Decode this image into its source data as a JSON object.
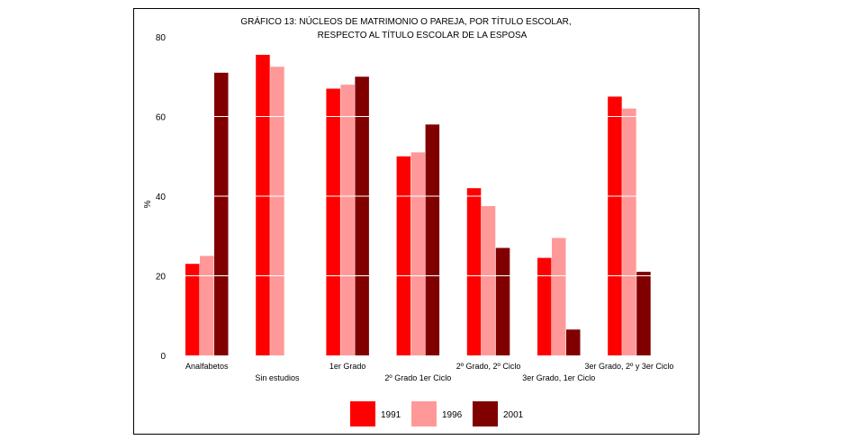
{
  "chart_data": {
    "type": "bar",
    "title": "GRÁFICO 13: NÚCLEOS DE MATRIMONIO O PAREJA, POR TÍTULO ESCOLAR,",
    "subtitle": "RESPECTO AL TÍTULO ESCOLAR DE LA ESPOSA",
    "xlabel": "",
    "ylabel": "%",
    "ylim": [
      0,
      80
    ],
    "yticks": [
      "0",
      "20",
      "40",
      "60",
      "80"
    ],
    "grid": true,
    "legend_position": "bottom",
    "categories": [
      "Analfabetos",
      "Sin estudios",
      "1er Grado",
      "2º Grado 1er Ciclo",
      "2º Grado, 2º Ciclo",
      "3er Grado, 1er Ciclo",
      "3er Grado, 2º y 3er Ciclo"
    ],
    "series": [
      {
        "name": "1991",
        "color": "#ff0000",
        "values": [
          23,
          75.5,
          67,
          50,
          42,
          24.5,
          65
        ]
      },
      {
        "name": "1996",
        "color": "#ff9999",
        "values": [
          25,
          72.5,
          68,
          51,
          37.5,
          29.5,
          62
        ]
      },
      {
        "name": "2001",
        "color": "#800000",
        "values": [
          71,
          null,
          70,
          58,
          27,
          6.5,
          21
        ]
      }
    ]
  }
}
